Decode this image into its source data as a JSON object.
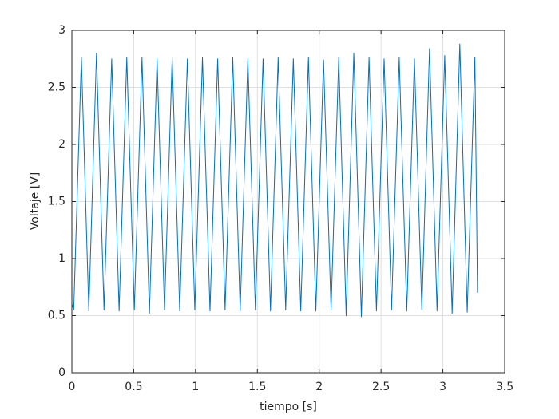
{
  "chart_data": {
    "type": "line",
    "x_label": "tiempo [s]",
    "y_label": "Voltaje [V]",
    "x": [
      0,
      0.015,
      0.077,
      0.137,
      0.199,
      0.26,
      0.322,
      0.382,
      0.444,
      0.505,
      0.567,
      0.627,
      0.689,
      0.749,
      0.811,
      0.872,
      0.934,
      0.994,
      1.056,
      1.117,
      1.179,
      1.239,
      1.301,
      1.361,
      1.423,
      1.484,
      1.546,
      1.606,
      1.668,
      1.729,
      1.791,
      1.851,
      1.913,
      1.973,
      2.035,
      2.096,
      2.158,
      2.218,
      2.28,
      2.341,
      2.403,
      2.463,
      2.525,
      2.585,
      2.647,
      2.708,
      2.77,
      2.83,
      2.892,
      2.953,
      3.015,
      3.075,
      3.137,
      3.197,
      3.259,
      3.28
    ],
    "series": [
      {
        "color": "#0072bd",
        "values": [
          0.6,
          0.55,
          2.76,
          0.54,
          2.8,
          0.55,
          2.75,
          0.54,
          2.76,
          0.55,
          2.76,
          0.52,
          2.75,
          0.55,
          2.76,
          0.54,
          2.75,
          0.55,
          2.76,
          0.54,
          2.75,
          0.55,
          2.76,
          0.54,
          2.75,
          0.55,
          2.75,
          0.54,
          2.76,
          0.55,
          2.75,
          0.54,
          2.76,
          0.54,
          2.74,
          0.55,
          2.76,
          0.5,
          2.8,
          0.49,
          2.76,
          0.54,
          2.75,
          0.55,
          2.76,
          0.54,
          2.75,
          0.55,
          2.84,
          0.54,
          2.78,
          0.52,
          2.88,
          0.53,
          2.76,
          0.7
        ]
      }
    ],
    "xlim": [
      0,
      3.5
    ],
    "xticks": [
      0,
      0.5,
      1,
      1.5,
      2,
      2.5,
      3,
      3.5
    ],
    "ylim": [
      0,
      3
    ],
    "yticks": [
      0,
      0.5,
      1,
      1.5,
      2,
      2.5,
      3
    ],
    "grid": true
  }
}
